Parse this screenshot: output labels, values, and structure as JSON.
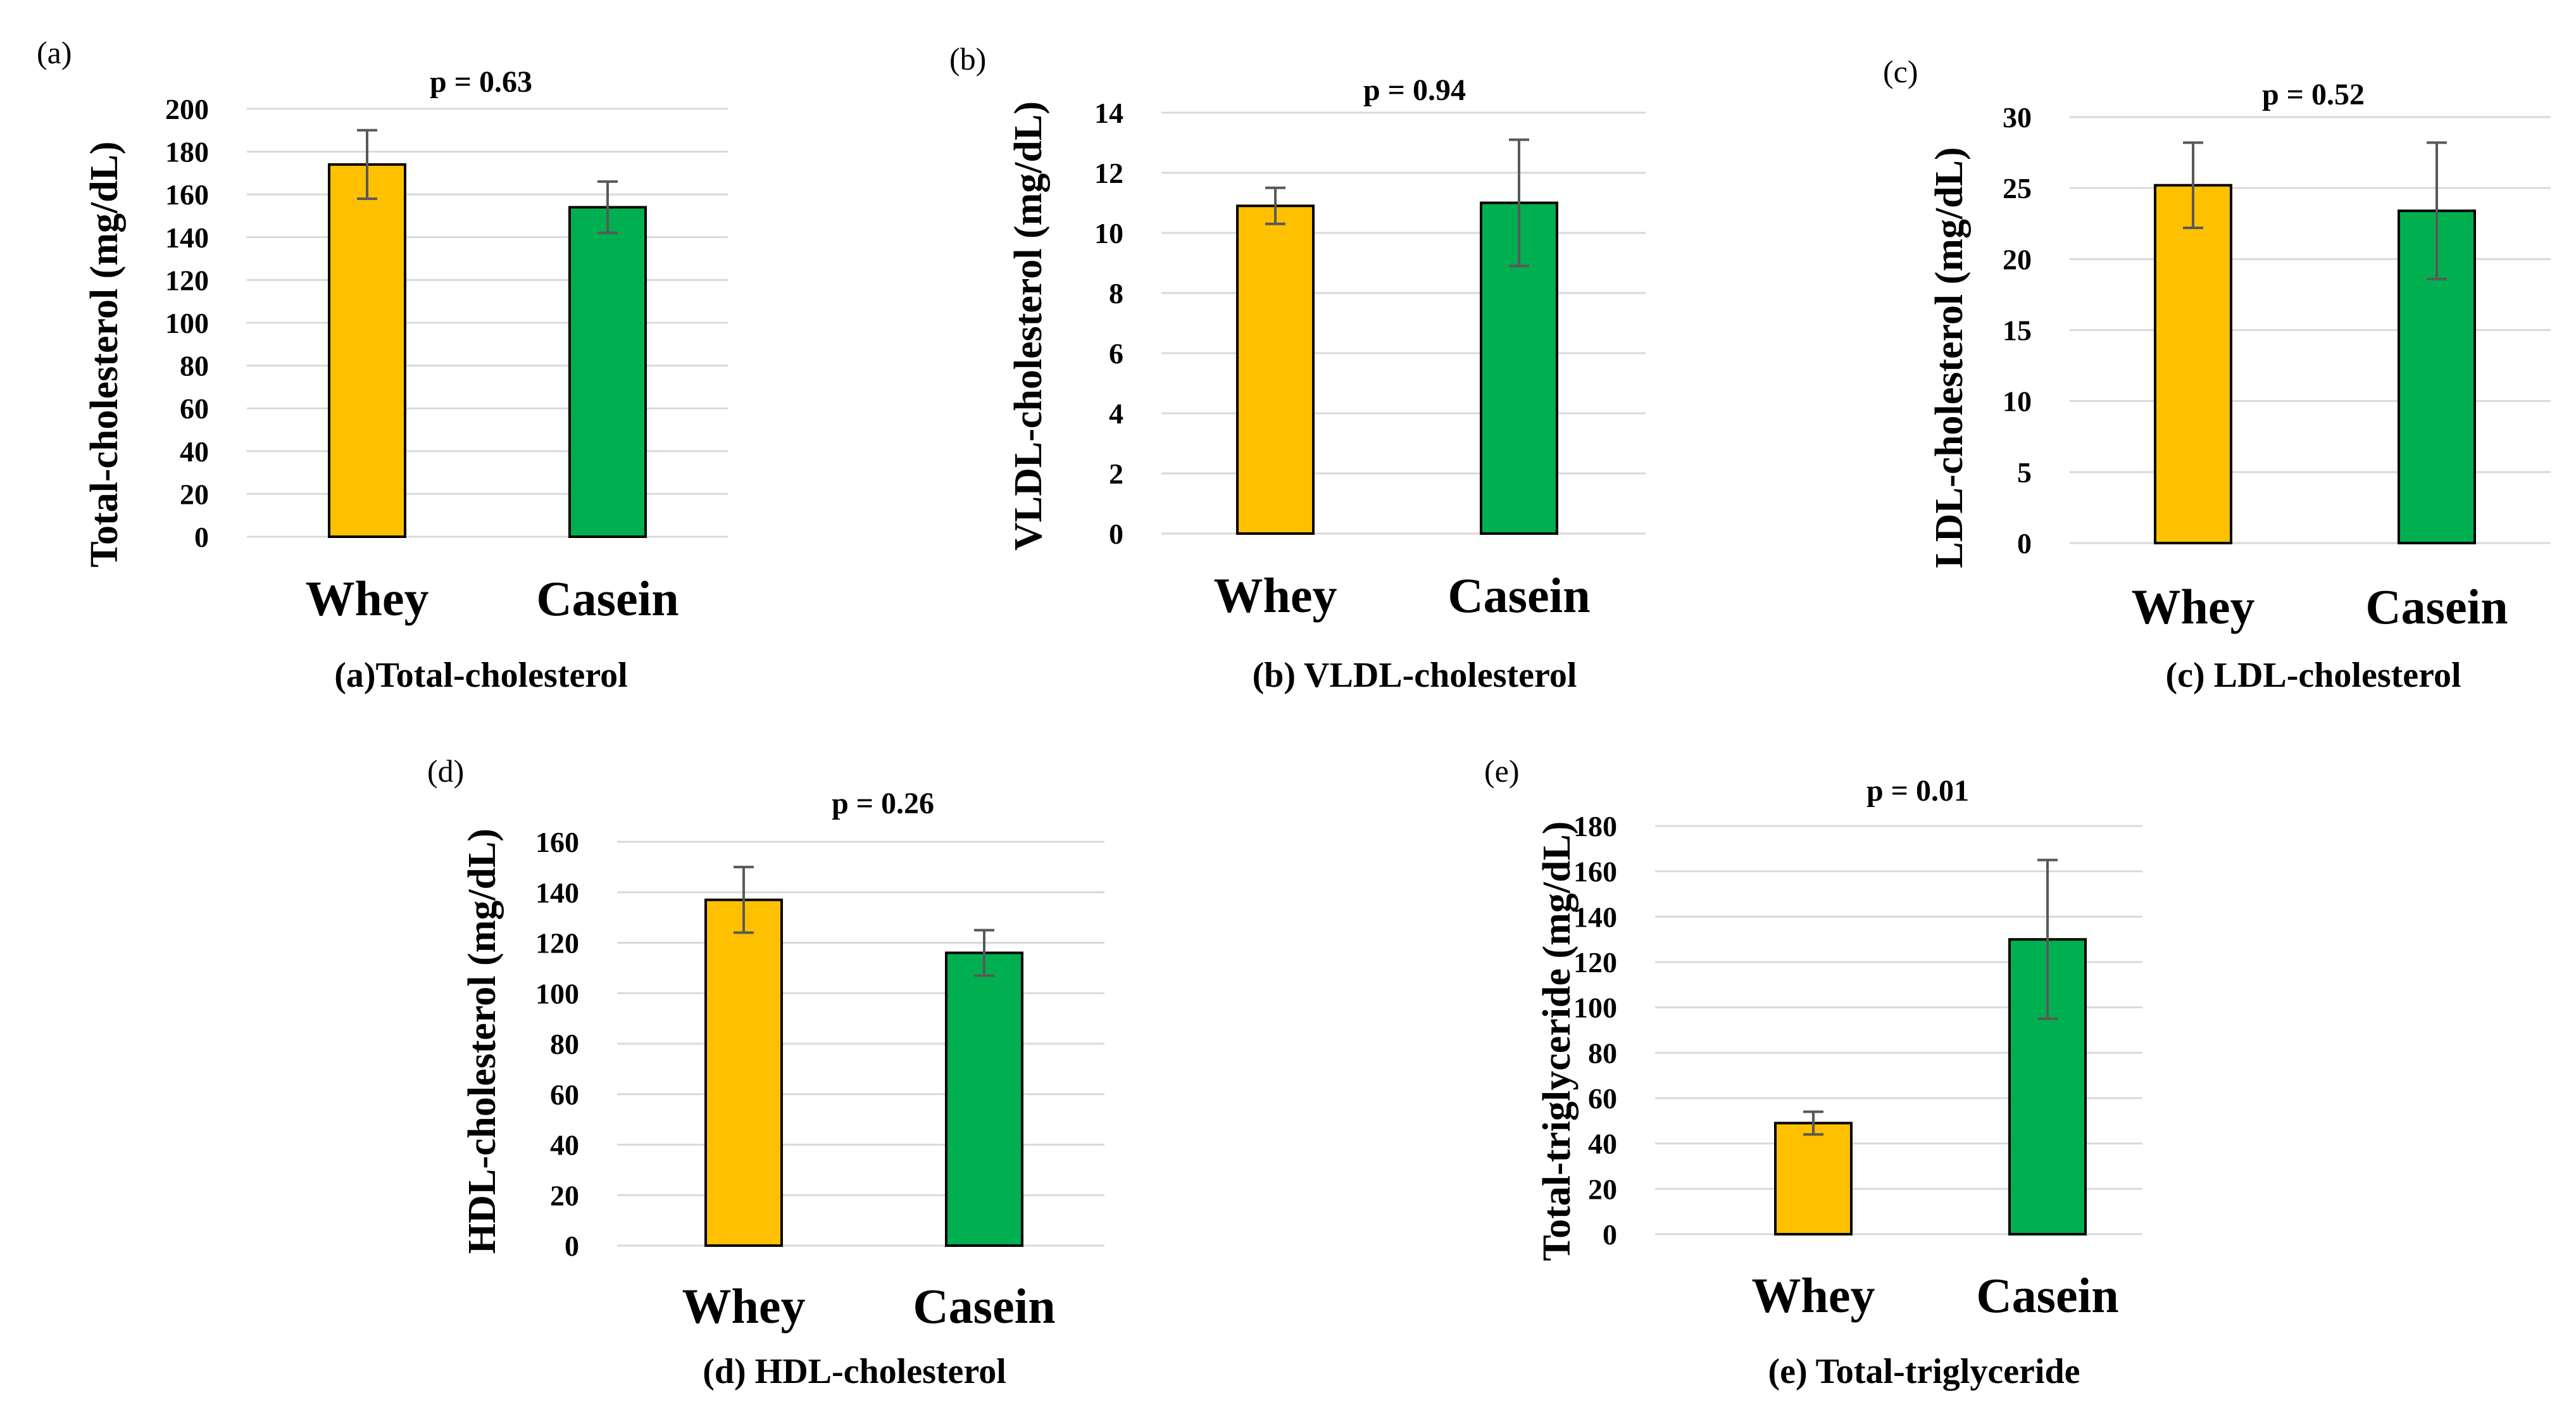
{
  "chart_data": [
    {
      "type": "bar",
      "panel": "(a)",
      "title": "p = 0.63",
      "caption": "(a)Total-cholesterol",
      "ylabel": "Total-cholesterol (mg/dL)",
      "categories": [
        "Whey",
        "Casein"
      ],
      "values": [
        174,
        154
      ],
      "errors": [
        16,
        12
      ],
      "ylim": [
        0,
        200
      ],
      "yticks": [
        0,
        20,
        40,
        60,
        80,
        100,
        120,
        140,
        160,
        180,
        200
      ],
      "colors": [
        "#FFC000",
        "#00B050"
      ],
      "grid": true
    },
    {
      "type": "bar",
      "panel": "(b)",
      "title": "p = 0.94",
      "caption": "(b) VLDL-cholesterol",
      "ylabel": "VLDL-cholesterol (mg/dL)",
      "categories": [
        "Whey",
        "Casein"
      ],
      "values": [
        10.9,
        11.0
      ],
      "errors": [
        0.6,
        2.1
      ],
      "ylim": [
        0,
        14
      ],
      "yticks": [
        0,
        2,
        4,
        6,
        8,
        10,
        12,
        14
      ],
      "colors": [
        "#FFC000",
        "#00B050"
      ],
      "grid": true
    },
    {
      "type": "bar",
      "panel": "(c)",
      "title": "p = 0.52",
      "caption": "(c) LDL-cholesterol",
      "ylabel": "LDL-cholesterol (mg/dL)",
      "categories": [
        "Whey",
        "Casein"
      ],
      "values": [
        25.2,
        23.4
      ],
      "errors": [
        3.0,
        4.8
      ],
      "ylim": [
        0,
        30
      ],
      "yticks": [
        0,
        5,
        10,
        15,
        20,
        25,
        30
      ],
      "colors": [
        "#FFC000",
        "#00B050"
      ],
      "grid": true
    },
    {
      "type": "bar",
      "panel": "(d)",
      "title": "p = 0.26",
      "caption": "(d) HDL-cholesterol",
      "ylabel": "HDL-cholesterol (mg/dL)",
      "categories": [
        "Whey",
        "Casein"
      ],
      "values": [
        137,
        116
      ],
      "errors": [
        13,
        9
      ],
      "ylim": [
        0,
        160
      ],
      "yticks": [
        0,
        20,
        40,
        60,
        80,
        100,
        120,
        140,
        160
      ],
      "colors": [
        "#FFC000",
        "#00B050"
      ],
      "grid": true
    },
    {
      "type": "bar",
      "panel": "(e)",
      "title": "p = 0.01",
      "caption": "(e) Total-triglyceride",
      "ylabel": "Total-triglyceride (mg/dL)",
      "categories": [
        "Whey",
        "Casein"
      ],
      "values": [
        49,
        130
      ],
      "errors": [
        5,
        35
      ],
      "ylim": [
        0,
        180
      ],
      "yticks": [
        0,
        20,
        40,
        60,
        80,
        100,
        120,
        140,
        160,
        180
      ],
      "colors": [
        "#FFC000",
        "#00B050"
      ],
      "grid": true
    }
  ]
}
